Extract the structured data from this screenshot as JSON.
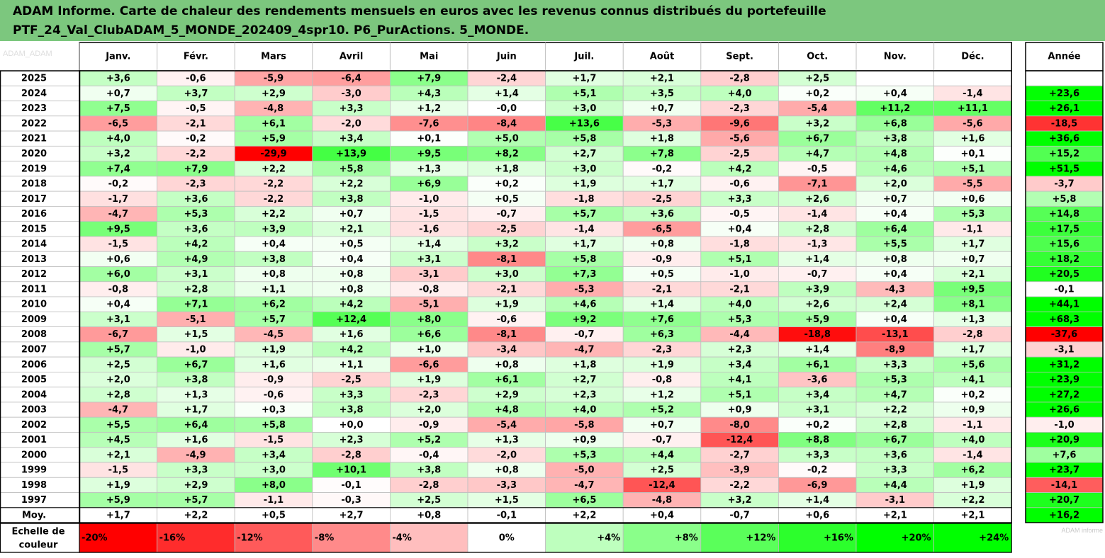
{
  "title": {
    "line1": "ADAM Informe. Carte de chaleur des rendements mensuels en euros avec les revenus connus distribués du portefeuille",
    "line2": "PTF_24_Val_ClubADAM_5_MONDE_202409_4spr10. P6_PurActions. 5_MONDE."
  },
  "watermark": "ADAM_ADAM",
  "credit": "ADAM informe",
  "colors": {
    "header_bg": "#7cc77e",
    "negative_max": "#ff0000",
    "positive_max": "#00ff00",
    "neutral": "#ffffff",
    "grid": "#bfbfbf"
  },
  "chart_data": {
    "type": "heatmap",
    "columns": [
      "Janv.",
      "Févr.",
      "Mars",
      "Avril",
      "Mai",
      "Juin",
      "Juil.",
      "Août",
      "Sept.",
      "Oct.",
      "Nov.",
      "Déc."
    ],
    "annual_column": "Année",
    "rows": [
      {
        "year": "2025",
        "values": [
          "+3,6",
          "-0,6",
          "-5,9",
          "-6,4",
          "+7,9",
          "-2,4",
          "+1,7",
          "+2,1",
          "-2,8",
          "+2,5",
          "",
          ""
        ],
        "annual": ""
      },
      {
        "year": "2024",
        "values": [
          "+0,7",
          "+3,7",
          "+2,9",
          "-3,0",
          "+4,3",
          "+1,4",
          "+5,1",
          "+3,5",
          "+4,0",
          "+0,2",
          "+0,4",
          "-1,4"
        ],
        "annual": "+23,6"
      },
      {
        "year": "2023",
        "values": [
          "+7,5",
          "-0,5",
          "-4,8",
          "+3,3",
          "+1,2",
          "-0,0",
          "+3,0",
          "+0,7",
          "-2,3",
          "-5,4",
          "+11,2",
          "+11,1"
        ],
        "annual": "+26,1"
      },
      {
        "year": "2022",
        "values": [
          "-6,5",
          "-2,1",
          "+6,1",
          "-2,0",
          "-7,6",
          "-8,4",
          "+13,6",
          "-5,3",
          "-9,6",
          "+3,2",
          "+6,8",
          "-5,6"
        ],
        "annual": "-18,5"
      },
      {
        "year": "2021",
        "values": [
          "+4,0",
          "-0,2",
          "+5,9",
          "+3,4",
          "+0,1",
          "+5,0",
          "+5,8",
          "+1,8",
          "-5,6",
          "+6,7",
          "+3,8",
          "+1,6"
        ],
        "annual": "+36,6"
      },
      {
        "year": "2020",
        "values": [
          "+3,2",
          "-2,2",
          "-29,9",
          "+13,9",
          "+9,5",
          "+8,2",
          "+2,7",
          "+7,8",
          "-2,5",
          "+4,7",
          "+4,8",
          "+0,1"
        ],
        "annual": "+15,2"
      },
      {
        "year": "2019",
        "values": [
          "+7,4",
          "+7,9",
          "+2,2",
          "+5,8",
          "+1,3",
          "+1,8",
          "+3,0",
          "-0,2",
          "+4,2",
          "-0,5",
          "+4,6",
          "+5,1"
        ],
        "annual": "+51,5"
      },
      {
        "year": "2018",
        "values": [
          "-0,2",
          "-2,3",
          "-2,2",
          "+2,2",
          "+6,9",
          "+0,2",
          "+1,9",
          "+1,7",
          "-0,6",
          "-7,1",
          "+2,0",
          "-5,5"
        ],
        "annual": "-3,7"
      },
      {
        "year": "2017",
        "values": [
          "-1,7",
          "+3,6",
          "-2,2",
          "+3,8",
          "-1,0",
          "+0,5",
          "-1,8",
          "-2,5",
          "+3,3",
          "+2,6",
          "+0,7",
          "+0,6"
        ],
        "annual": "+5,8"
      },
      {
        "year": "2016",
        "values": [
          "-4,7",
          "+5,3",
          "+2,2",
          "+0,7",
          "-1,5",
          "-0,7",
          "+5,7",
          "+3,6",
          "-0,5",
          "-1,4",
          "+0,4",
          "+5,3"
        ],
        "annual": "+14,8"
      },
      {
        "year": "2015",
        "values": [
          "+9,5",
          "+3,6",
          "+3,9",
          "+2,1",
          "-1,6",
          "-2,5",
          "-1,4",
          "-6,5",
          "+0,4",
          "+2,8",
          "+6,4",
          "-1,1"
        ],
        "annual": "+17,5"
      },
      {
        "year": "2014",
        "values": [
          "-1,5",
          "+4,2",
          "+0,4",
          "+0,5",
          "+1,4",
          "+3,2",
          "+1,7",
          "+0,8",
          "-1,8",
          "-1,3",
          "+5,5",
          "+1,7"
        ],
        "annual": "+15,6"
      },
      {
        "year": "2013",
        "values": [
          "+0,6",
          "+4,9",
          "+3,8",
          "+0,4",
          "+3,1",
          "-8,1",
          "+5,8",
          "-0,9",
          "+5,1",
          "+1,4",
          "+0,8",
          "+0,7"
        ],
        "annual": "+18,2"
      },
      {
        "year": "2012",
        "values": [
          "+6,0",
          "+3,1",
          "+0,8",
          "+0,8",
          "-3,1",
          "+3,0",
          "+7,3",
          "+0,5",
          "-1,0",
          "-0,7",
          "+0,4",
          "+2,1"
        ],
        "annual": "+20,5"
      },
      {
        "year": "2011",
        "values": [
          "-0,8",
          "+2,8",
          "+1,1",
          "+0,8",
          "-0,8",
          "-2,1",
          "-5,3",
          "-2,1",
          "-2,1",
          "+3,9",
          "-4,3",
          "+9,5"
        ],
        "annual": "-0,1"
      },
      {
        "year": "2010",
        "values": [
          "+0,4",
          "+7,1",
          "+6,2",
          "+4,2",
          "-5,1",
          "+1,9",
          "+4,6",
          "+1,4",
          "+4,0",
          "+2,6",
          "+2,4",
          "+8,1"
        ],
        "annual": "+44,1"
      },
      {
        "year": "2009",
        "values": [
          "+3,1",
          "-5,1",
          "+5,7",
          "+12,4",
          "+8,0",
          "-0,6",
          "+9,2",
          "+7,6",
          "+5,3",
          "+5,9",
          "+0,4",
          "+1,3"
        ],
        "annual": "+68,3"
      },
      {
        "year": "2008",
        "values": [
          "-6,7",
          "+1,5",
          "-4,5",
          "+1,6",
          "+6,6",
          "-8,1",
          "-0,7",
          "+6,3",
          "-4,4",
          "-18,8",
          "-13,1",
          "-2,8"
        ],
        "annual": "-37,6"
      },
      {
        "year": "2007",
        "values": [
          "+5,7",
          "-1,0",
          "+1,9",
          "+4,2",
          "+1,0",
          "-3,4",
          "-4,7",
          "-2,3",
          "+2,3",
          "+1,4",
          "-8,9",
          "+1,7"
        ],
        "annual": "-3,1"
      },
      {
        "year": "2006",
        "values": [
          "+2,5",
          "+6,7",
          "+1,6",
          "+1,1",
          "-6,6",
          "+0,8",
          "+1,8",
          "+1,9",
          "+3,4",
          "+6,1",
          "+3,3",
          "+5,6"
        ],
        "annual": "+31,2"
      },
      {
        "year": "2005",
        "values": [
          "+2,0",
          "+3,8",
          "-0,9",
          "-2,5",
          "+1,9",
          "+6,1",
          "+2,7",
          "-0,8",
          "+4,1",
          "-3,6",
          "+5,3",
          "+4,1"
        ],
        "annual": "+23,9"
      },
      {
        "year": "2004",
        "values": [
          "+2,8",
          "+1,3",
          "-0,6",
          "+3,3",
          "-2,3",
          "+2,9",
          "+2,3",
          "+1,2",
          "+5,1",
          "+3,4",
          "+4,7",
          "+0,2"
        ],
        "annual": "+27,2"
      },
      {
        "year": "2003",
        "values": [
          "-4,7",
          "+1,7",
          "+0,3",
          "+3,8",
          "+2,0",
          "+4,8",
          "+4,0",
          "+5,2",
          "+0,9",
          "+3,1",
          "+2,2",
          "+0,9"
        ],
        "annual": "+26,6"
      },
      {
        "year": "2002",
        "values": [
          "+5,5",
          "+6,4",
          "+5,8",
          "+0,0",
          "-0,9",
          "-5,4",
          "-5,8",
          "+0,7",
          "-8,0",
          "+0,2",
          "+2,8",
          "-1,1"
        ],
        "annual": "-1,0"
      },
      {
        "year": "2001",
        "values": [
          "+4,5",
          "+1,6",
          "-1,5",
          "+2,3",
          "+5,2",
          "+1,3",
          "+0,9",
          "-0,7",
          "-12,4",
          "+8,8",
          "+6,7",
          "+4,0"
        ],
        "annual": "+20,9"
      },
      {
        "year": "2000",
        "values": [
          "+2,1",
          "-4,9",
          "+3,4",
          "-2,8",
          "-0,4",
          "-2,0",
          "+5,3",
          "+4,4",
          "-2,7",
          "+3,3",
          "+3,6",
          "-1,4"
        ],
        "annual": "+7,6"
      },
      {
        "year": "1999",
        "values": [
          "-1,5",
          "+3,3",
          "+3,0",
          "+10,1",
          "+3,8",
          "+0,8",
          "-5,0",
          "+2,5",
          "-3,9",
          "-0,2",
          "+3,3",
          "+6,2"
        ],
        "annual": "+23,7"
      },
      {
        "year": "1998",
        "values": [
          "+1,9",
          "+2,9",
          "+8,0",
          "-0,1",
          "-2,8",
          "-3,3",
          "-4,7",
          "-12,4",
          "-2,2",
          "-6,9",
          "+4,4",
          "+1,9"
        ],
        "annual": "-14,1"
      },
      {
        "year": "1997",
        "values": [
          "+5,9",
          "+5,7",
          "-1,1",
          "-0,3",
          "+2,5",
          "+1,5",
          "+6,5",
          "-4,8",
          "+3,2",
          "+1,4",
          "-3,1",
          "+2,2"
        ],
        "annual": "+20,7"
      }
    ],
    "average": {
      "label": "Moy.",
      "values": [
        "+1,7",
        "+2,2",
        "+0,5",
        "+2,7",
        "+0,8",
        "-0,1",
        "+2,2",
        "+0,4",
        "-0,7",
        "+0,6",
        "+2,1",
        "+2,1"
      ],
      "annual": "+16,2"
    },
    "scale": {
      "label_line1": "Echelle de",
      "label_line2": "couleur",
      "steps": [
        "-20%",
        "-16%",
        "-12%",
        "-8%",
        "-4%",
        "0%",
        "+4%",
        "+8%",
        "+12%",
        "+16%",
        "+20%",
        "+24%"
      ],
      "step_values": [
        -20,
        -16,
        -12,
        -8,
        -4,
        0,
        4,
        8,
        12,
        16,
        20,
        24
      ]
    },
    "color_scale": {
      "monthly_saturation": 20,
      "annual_saturation": 24
    }
  }
}
